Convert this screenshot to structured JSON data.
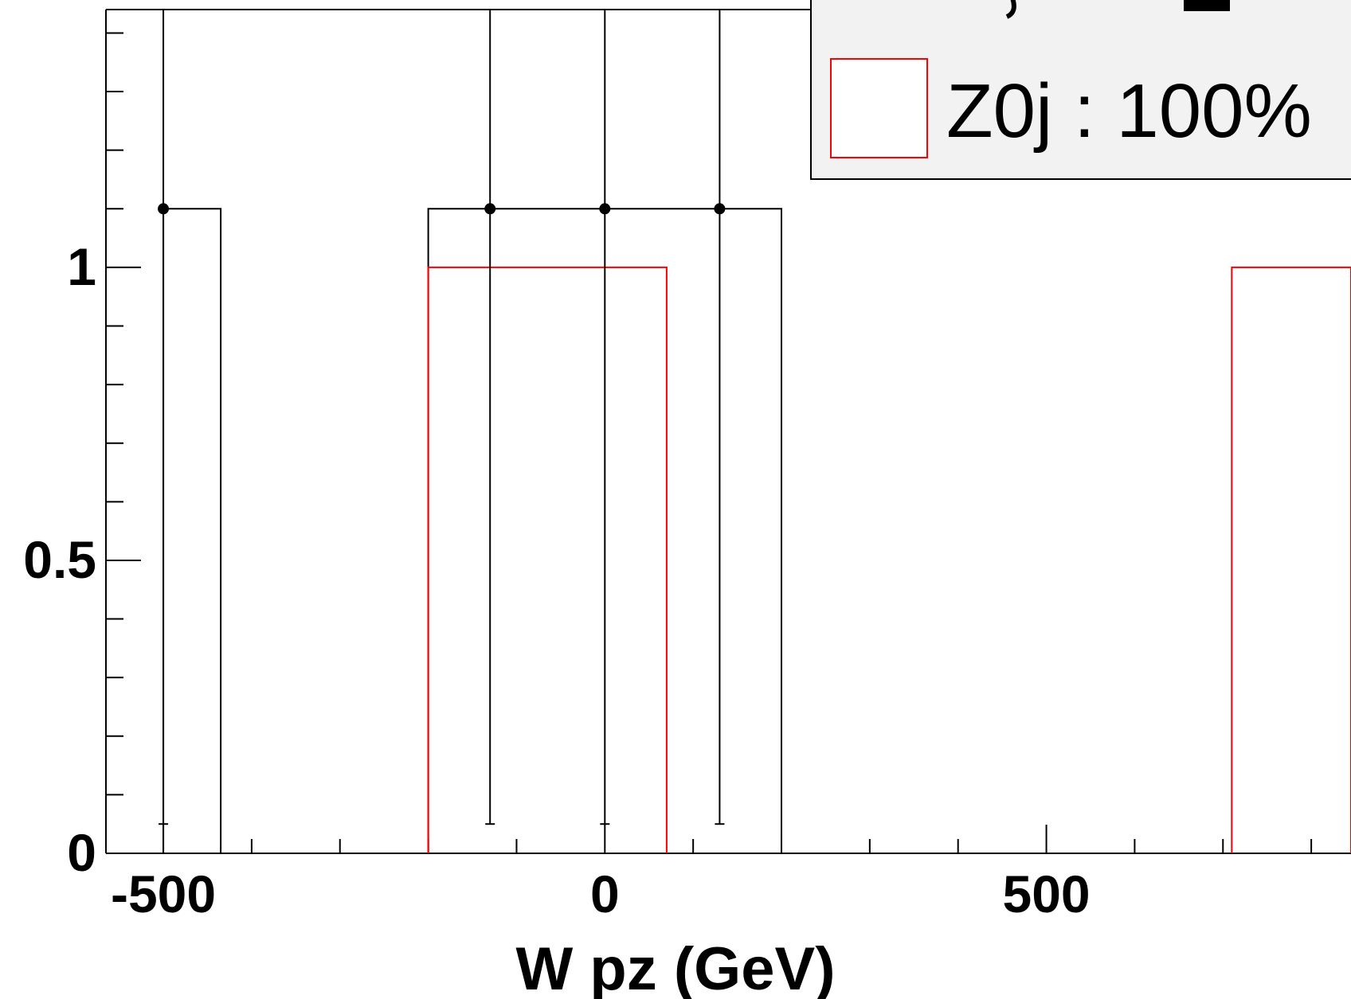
{
  "chart_data": {
    "type": "histogram",
    "xlabel": "W pz (GeV)",
    "ylabel": "",
    "xlim": [
      -565,
      845
    ],
    "ylim": [
      0,
      1.44
    ],
    "x_ticks": [
      {
        "value": -500,
        "label": "-500"
      },
      {
        "value": 0,
        "label": "0"
      },
      {
        "value": 500,
        "label": "500"
      }
    ],
    "y_ticks": [
      {
        "value": 0,
        "label": "0"
      },
      {
        "value": 0.5,
        "label": "0.5"
      },
      {
        "value": 1,
        "label": "1"
      }
    ],
    "series": [
      {
        "type": "step",
        "color": "#000000",
        "bins": [
          {
            "x0": -500,
            "x1": -435,
            "y": 1.1
          },
          {
            "x0": -200,
            "x1": 200,
            "y": 1.1
          }
        ]
      },
      {
        "name": "Z0j : 100%",
        "type": "step",
        "color": "#ff0000",
        "bins": [
          {
            "x0": -200,
            "x1": 70,
            "y": 1.0
          },
          {
            "x0": 710,
            "x1": 845,
            "y": 1.0
          }
        ]
      },
      {
        "type": "points",
        "color": "#000000",
        "points": [
          {
            "x": -500,
            "y": 1.1,
            "ylo": 0.05,
            "yhi": 1.44
          },
          {
            "x": -130,
            "y": 1.1,
            "ylo": 0.05,
            "yhi": 1.44
          },
          {
            "x": 0,
            "y": 1.1,
            "ylo": 0.05,
            "yhi": 1.44
          },
          {
            "x": 130,
            "y": 1.1,
            "ylo": 0.05,
            "yhi": 1.44
          }
        ]
      }
    ],
    "legend": {
      "position": "top-right",
      "background": "#f2f2f2",
      "entries": [
        {
          "label": "Z0j : 100%",
          "color": "#ff0000"
        }
      ]
    }
  }
}
